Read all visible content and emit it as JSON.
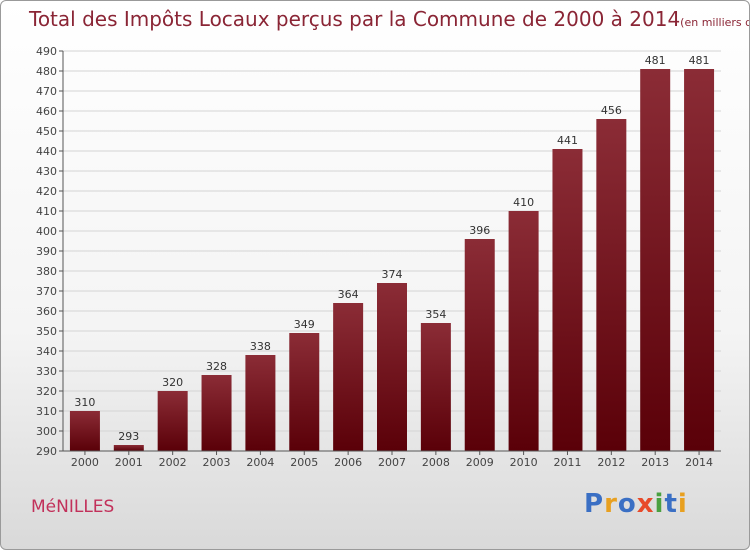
{
  "title": "Total des Impôts Locaux perçus par la Commune de 2000 à 2014",
  "unit": "(en milliers d'€)",
  "commune": "MéNILLES",
  "brand": {
    "letters": [
      "P",
      "r",
      "o",
      "x",
      "i",
      "t",
      "i"
    ],
    "colors": [
      "#3a6fc4",
      "#e8a020",
      "#3a6fc4",
      "#e84a2a",
      "#4aa040",
      "#3a6fc4",
      "#e8a020"
    ]
  },
  "chart_data": {
    "type": "bar",
    "title": "Total des Impôts Locaux perçus par la Commune de 2000 à 2014",
    "xlabel": "",
    "ylabel": "",
    "categories": [
      "2000",
      "2001",
      "2002",
      "2003",
      "2004",
      "2005",
      "2006",
      "2007",
      "2008",
      "2009",
      "2010",
      "2011",
      "2012",
      "2013",
      "2014"
    ],
    "values": [
      310,
      293,
      320,
      328,
      338,
      349,
      364,
      374,
      354,
      396,
      410,
      441,
      456,
      481,
      481
    ],
    "ylim": [
      290,
      490
    ],
    "ytick_step": 10,
    "grid": true,
    "bar_color_top": "#8b2c36",
    "bar_color_bottom": "#5a0008"
  }
}
